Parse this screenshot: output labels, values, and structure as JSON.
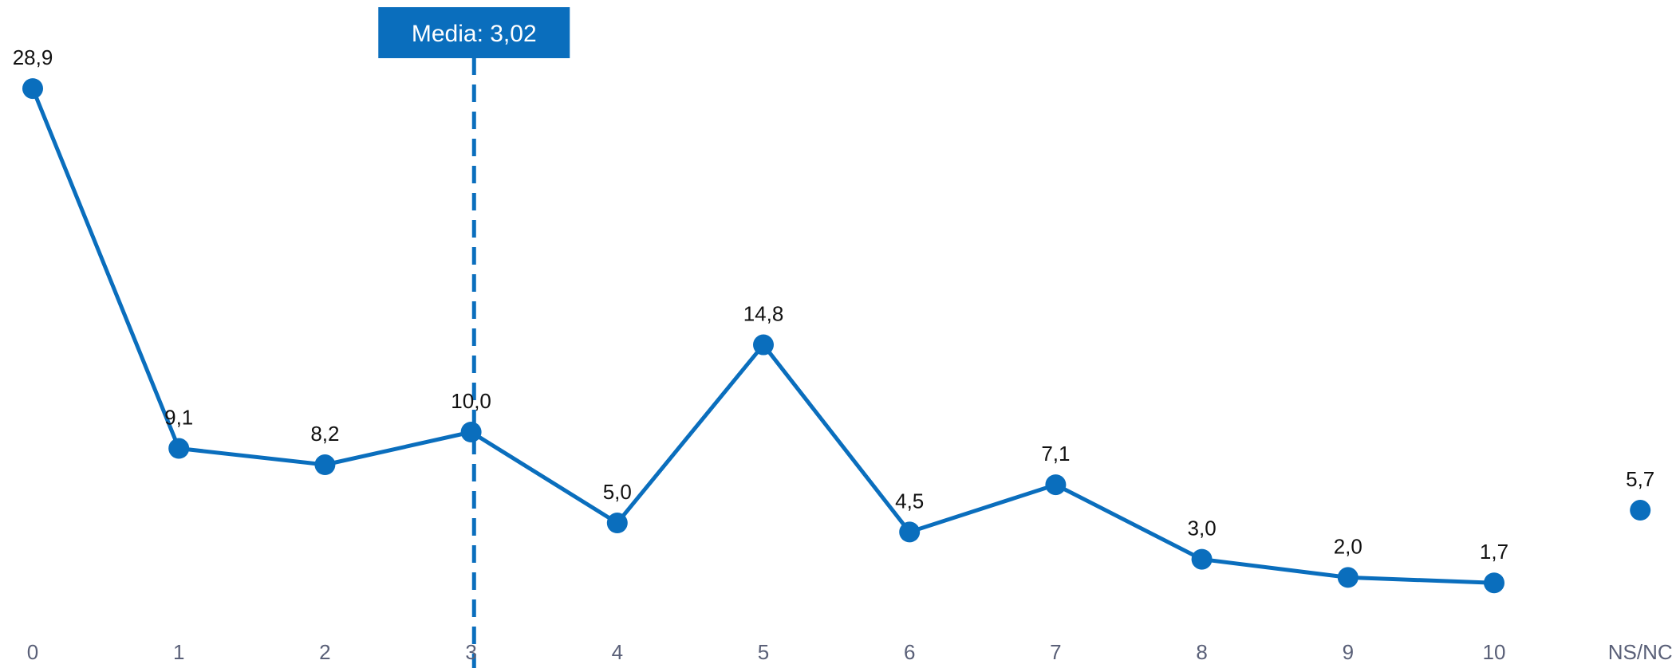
{
  "chart_data": {
    "type": "line",
    "categories": [
      "0",
      "1",
      "2",
      "3",
      "4",
      "5",
      "6",
      "7",
      "8",
      "9",
      "10",
      "NS/NC"
    ],
    "values": [
      28.9,
      9.1,
      8.2,
      10.0,
      5.0,
      14.8,
      4.5,
      7.1,
      3.0,
      2.0,
      1.7,
      5.7
    ],
    "value_labels": [
      "28,9",
      "9,1",
      "8,2",
      "10,0",
      "5,0",
      "14,8",
      "4,5",
      "7,1",
      "3,0",
      "2,0",
      "1,7",
      "5,7"
    ],
    "connected_count": 11,
    "mean": {
      "value": 3.02,
      "label": "Media: 3,02"
    },
    "grid": false,
    "legend": "none",
    "colors": {
      "series": "#0a6ebd",
      "mean_box": "#0a6ebd",
      "tick_text": "#5a6078",
      "value_text": "#111111"
    }
  }
}
